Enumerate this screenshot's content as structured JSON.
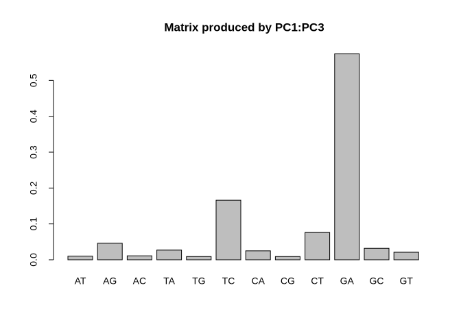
{
  "chart_data": {
    "type": "bar",
    "title": "Matrix produced by PC1:PC3",
    "categories": [
      "AT",
      "AG",
      "AC",
      "TA",
      "TG",
      "TC",
      "CA",
      "CG",
      "CT",
      "GA",
      "GC",
      "GT"
    ],
    "values": [
      0.01,
      0.046,
      0.011,
      0.027,
      0.009,
      0.166,
      0.025,
      0.009,
      0.076,
      0.574,
      0.032,
      0.021
    ],
    "color": "#bebebe",
    "ylim": [
      0,
      0.6
    ],
    "yticks": [
      {
        "value": 0,
        "label": "0.0"
      },
      0.1,
      0.2,
      0.3,
      0.4,
      0.5
    ],
    "grid": false
  }
}
